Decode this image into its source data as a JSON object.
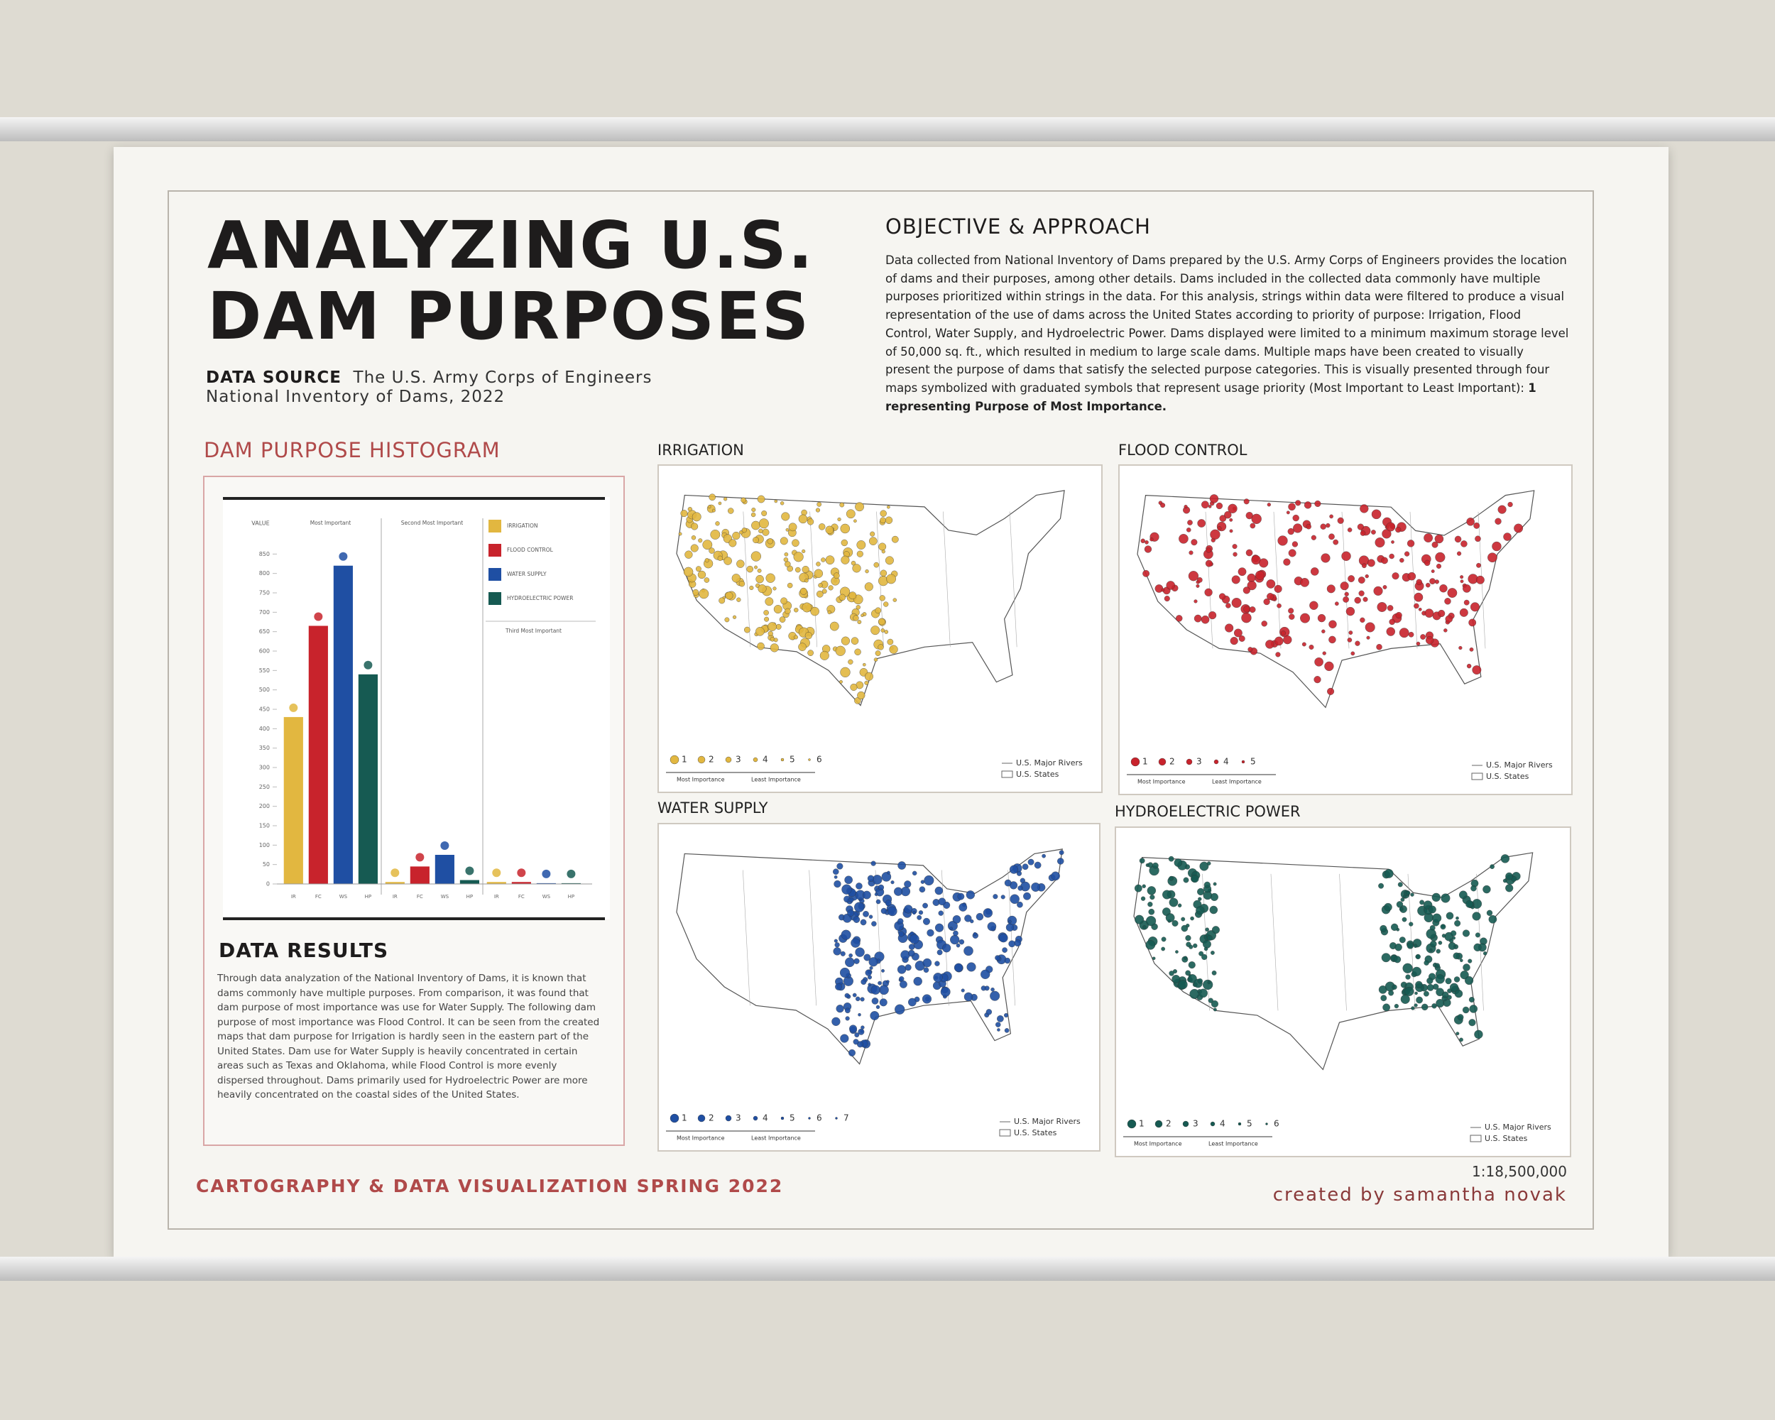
{
  "title_lines": [
    "ANALYZING U.S.",
    "DAM PURPOSES"
  ],
  "data_source": {
    "label": "DATA SOURCE",
    "lines": [
      "The U.S. Army Corps of Engineers",
      "National Inventory of Dams, 2022"
    ]
  },
  "objective": {
    "heading": "OBJECTIVE & APPROACH",
    "text": "Data collected from National Inventory of Dams prepared by the U.S. Army Corps of Engineers provides the location of dams and their purposes, among other details. Dams included in the collected data commonly have multiple purposes prioritized within strings in the data. For this analysis, strings within data were filtered to produce a visual representation of the use of dams across the United States according to priority of purpose: Irrigation, Flood Control, Water Supply, and Hydroelectric Power. Dams displayed were limited to a minimum maximum storage level of 50,000 sq. ft., which resulted in medium to large scale dams. Multiple maps have been created to visually present the purpose of dams that satisfy the selected purpose categories. This is visually presented through four maps symbolized with graduated symbols that represent usage priority (Most Important to Least Important):",
    "text_bold": "1 representing Purpose of Most Importance."
  },
  "histogram_heading": "DAM PURPOSE HISTOGRAM",
  "chart_data": {
    "type": "bar",
    "y_label": "VALUE",
    "categories": [
      "Most Important",
      "Second Most Important",
      "Third Most Important"
    ],
    "series": [
      {
        "name": "IRRIGATION",
        "code": "IR",
        "color": "#e2b740",
        "values": [
          430,
          5,
          5
        ]
      },
      {
        "name": "FLOOD CONTROL",
        "code": "FC",
        "color": "#c8232c",
        "values": [
          665,
          45,
          5
        ]
      },
      {
        "name": "WATER SUPPLY",
        "code": "WS",
        "color": "#1f4fa3",
        "values": [
          820,
          75,
          2
        ]
      },
      {
        "name": "HYDROELECTRIC POWER",
        "code": "HP",
        "color": "#165a52",
        "values": [
          540,
          10,
          2
        ]
      }
    ],
    "ylim": [
      0,
      900
    ],
    "yticks": [
      0,
      50,
      100,
      150,
      200,
      250,
      300,
      350,
      400,
      450,
      500,
      550,
      600,
      650,
      700,
      750,
      800,
      850
    ]
  },
  "data_results": {
    "heading": "DATA RESULTS",
    "text": "Through data analyzation of the National Inventory of Dams, it is known that dams commonly have multiple purposes. From comparison, it was found that dam purpose of most importance was use for Water Supply. The following dam purpose of most importance was Flood Control. It can be seen from the created maps that dam purpose for Irrigation is hardly seen in the eastern part of the United States. Dam use for Water Supply is heavily concentrated in certain areas such as Texas and Oklahoma, while Flood Control is more evenly dispersed throughout. Dams primarily used for Hydroelectric Power are more heavily concentrated on the coastal sides of the United States."
  },
  "maps": [
    {
      "title": "IRRIGATION",
      "color": "#e2b740",
      "legend_levels": [
        1,
        2,
        3,
        4,
        5,
        6
      ]
    },
    {
      "title": "FLOOD CONTROL",
      "color": "#c8232c",
      "legend_levels": [
        1,
        2,
        3,
        4,
        5
      ]
    },
    {
      "title": "WATER SUPPLY",
      "color": "#1f4fa3",
      "legend_levels": [
        1,
        2,
        3,
        4,
        5,
        6,
        7
      ]
    },
    {
      "title": "HYDROELECTRIC POWER",
      "color": "#165a52",
      "legend_levels": [
        1,
        2,
        3,
        4,
        5,
        6
      ]
    }
  ],
  "map_legend": {
    "most": "Most Importance",
    "least": "Least Importance",
    "rivers": "U.S. Major Rivers",
    "states": "U.S. States"
  },
  "footer": {
    "course": "CARTOGRAPHY & DATA VISUALIZATION SPRING 2022",
    "scale": "1:18,500,000",
    "credit": "created by samantha novak"
  }
}
